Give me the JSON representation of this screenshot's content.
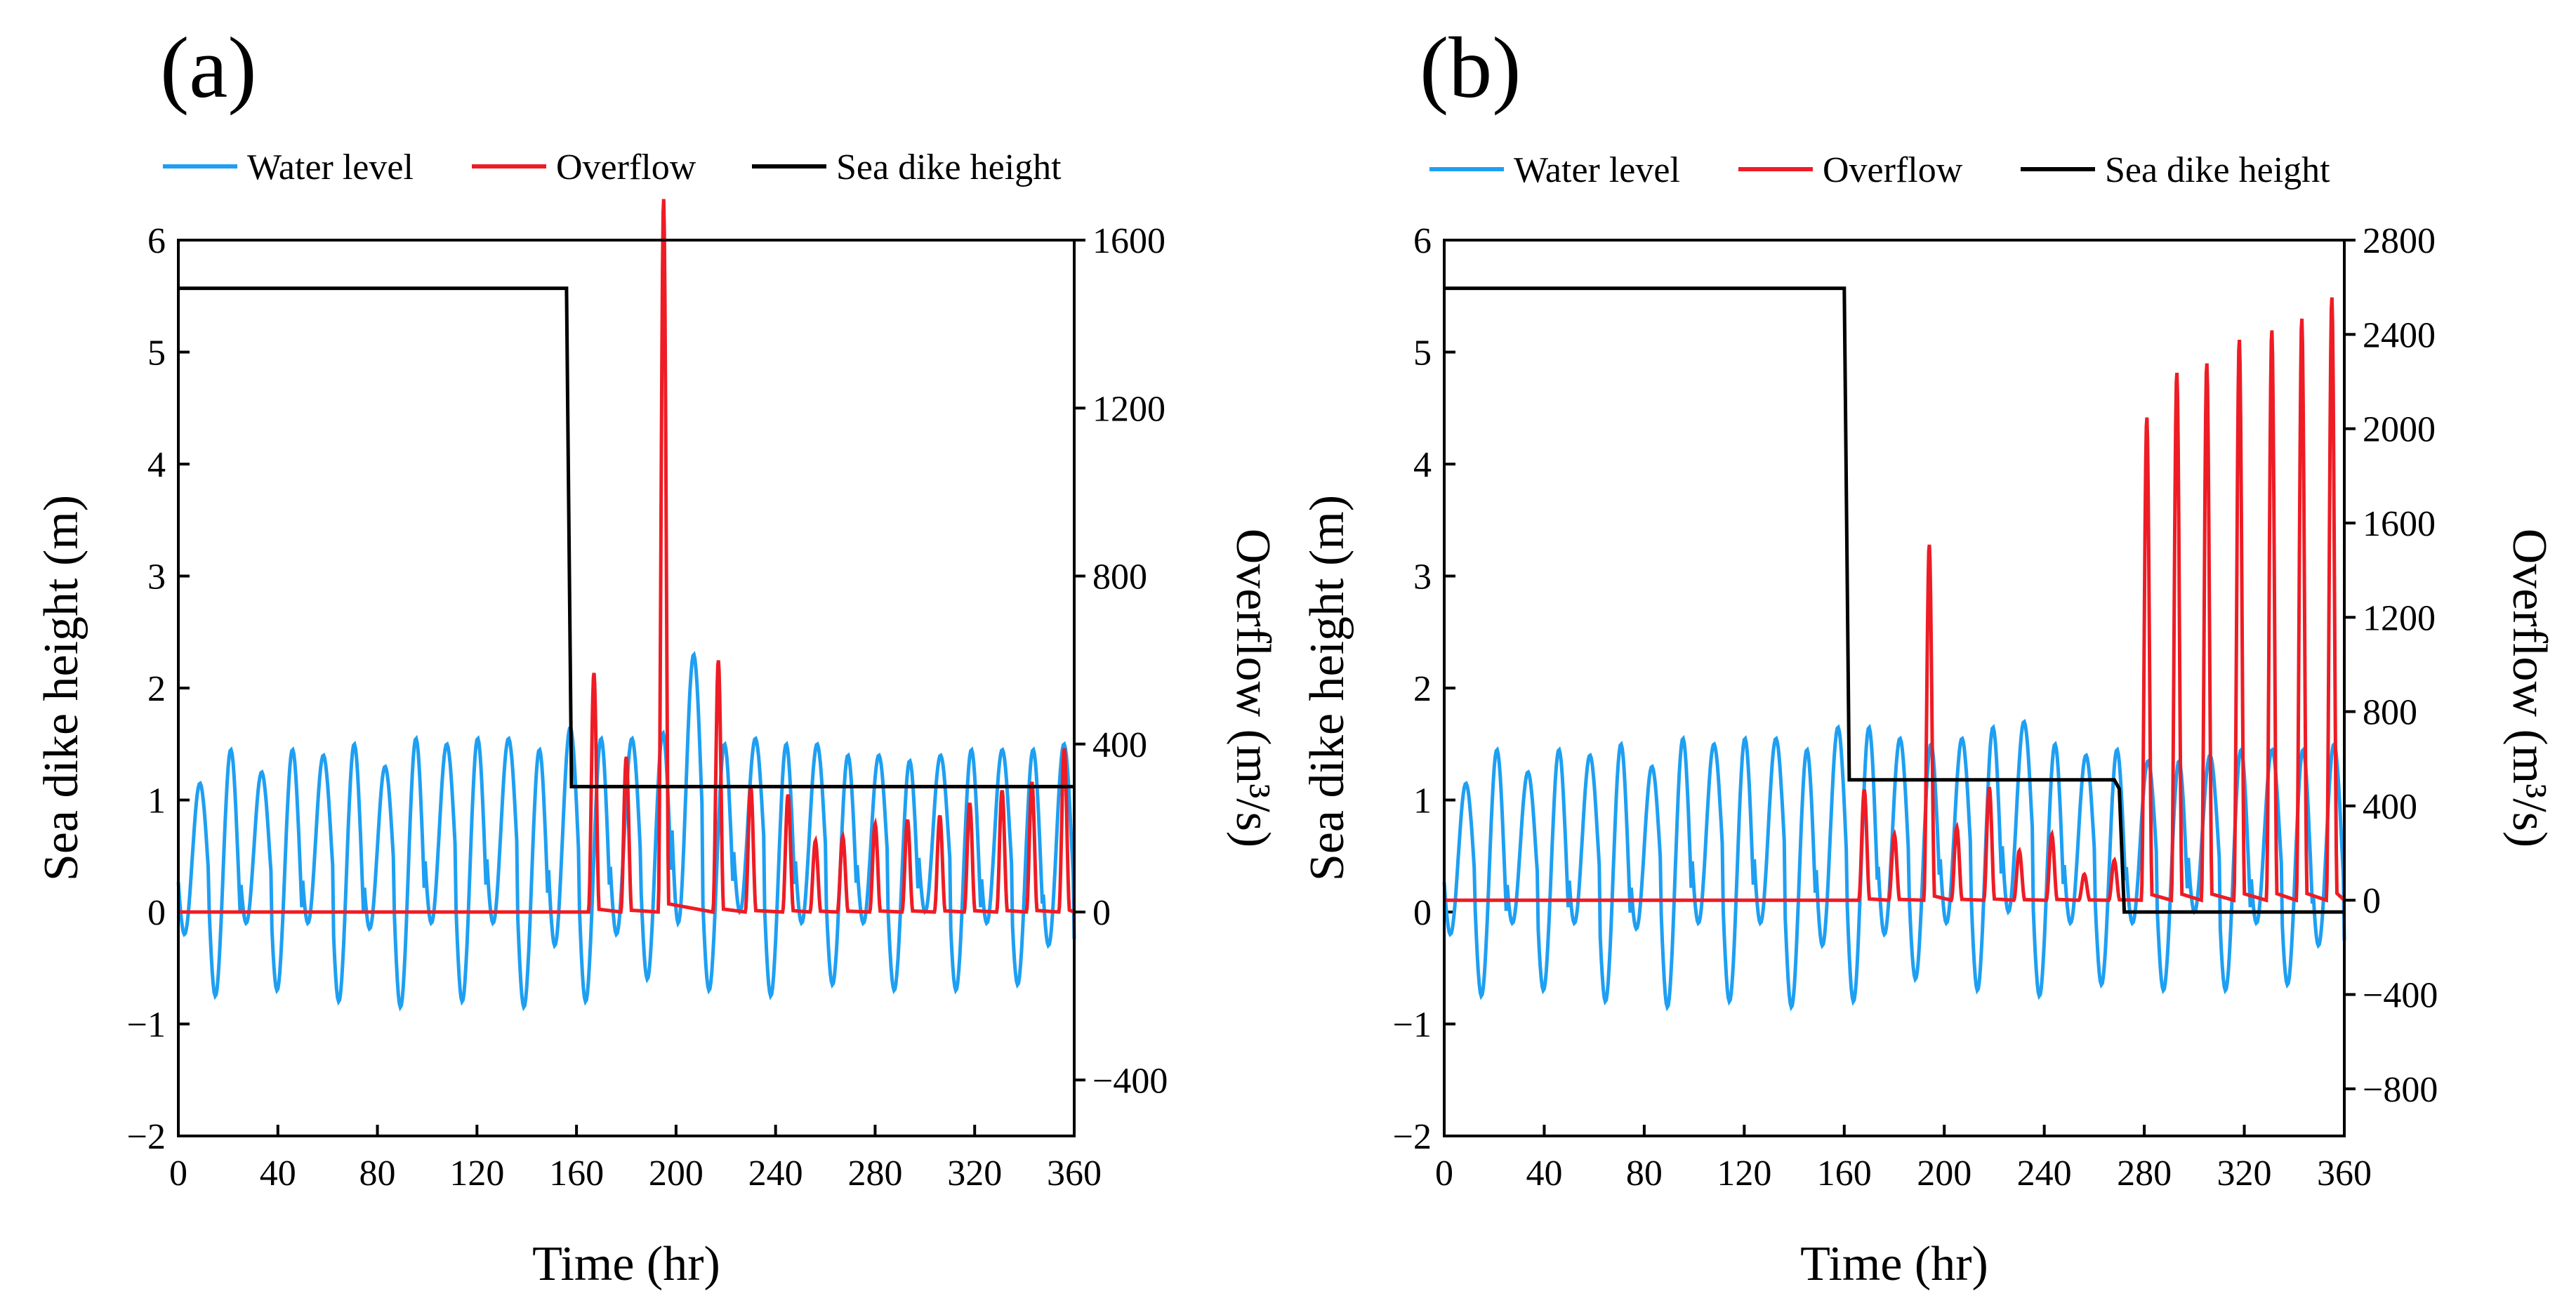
{
  "chart_data": [
    {
      "panel_label": "(a)",
      "type": "line",
      "xlabel": "Time (hr)",
      "ylabel": "Sea dike height (m)",
      "y2label": "Overflow (m³/s)",
      "xlim": [
        0,
        360
      ],
      "ylim": [
        -2,
        6
      ],
      "y2lim": [
        -533.3,
        1600
      ],
      "xticks": [
        "0",
        "40",
        "80",
        "120",
        "160",
        "200",
        "240",
        "280",
        "320",
        "360"
      ],
      "yticks": [
        "−2",
        "−1",
        "0",
        "1",
        "2",
        "3",
        "4",
        "5",
        "6"
      ],
      "y2ticks": [
        "−400",
        "0",
        "400",
        "800",
        "1200",
        "1600"
      ],
      "grid": false,
      "legend_placement": "top",
      "water_level": {
        "mean": 0.35,
        "period_hr": 12.4,
        "peaks": [
          1.15,
          1.45,
          1.25,
          1.45,
          1.4,
          1.5,
          1.3,
          1.55,
          1.5,
          1.55,
          1.55,
          1.45,
          1.65,
          1.55,
          1.55,
          1.6,
          2.3,
          1.5,
          1.55,
          1.5,
          1.5,
          1.4,
          1.4,
          1.35,
          1.4,
          1.45,
          1.45,
          1.45,
          1.5,
          1.55
        ],
        "troughs": [
          -0.2,
          -0.75,
          -0.1,
          -0.7,
          -0.1,
          -0.8,
          -0.15,
          -0.85,
          -0.1,
          -0.8,
          -0.1,
          -0.85,
          -0.3,
          -0.8,
          -0.2,
          -0.6,
          -0.1,
          -0.7,
          0.0,
          -0.75,
          -0.1,
          -0.65,
          -0.1,
          -0.7,
          0.0,
          -0.7,
          -0.1,
          -0.65,
          -0.3,
          -0.85
        ]
      },
      "overflow": [
        [
          167,
          570
        ],
        [
          180,
          370
        ],
        [
          195,
          1700
        ],
        [
          217,
          600
        ],
        [
          230,
          300
        ],
        [
          245,
          280
        ],
        [
          256,
          170
        ],
        [
          267,
          180
        ],
        [
          280,
          210
        ],
        [
          293,
          220
        ],
        [
          306,
          230
        ],
        [
          318,
          260
        ],
        [
          331,
          290
        ],
        [
          343,
          310
        ],
        [
          356,
          390
        ]
      ],
      "sea_dike_height": [
        [
          0,
          5.57
        ],
        [
          156,
          5.57
        ],
        [
          158,
          1.12
        ],
        [
          360,
          1.12
        ]
      ],
      "series": [
        {
          "name": "Water level",
          "color": "#1e9ff2"
        },
        {
          "name": "Overflow",
          "color": "#ee1c25"
        },
        {
          "name": "Sea dike height",
          "color": "#000000"
        }
      ]
    },
    {
      "panel_label": "(b)",
      "type": "line",
      "xlabel": "Time (hr)",
      "ylabel": "Sea dike height (m)",
      "y2label": "Overflow (m³/s)",
      "xlim": [
        0,
        360
      ],
      "ylim": [
        -2,
        6
      ],
      "y2lim": [
        -1000,
        2800
      ],
      "xticks": [
        "0",
        "40",
        "80",
        "120",
        "160",
        "200",
        "240",
        "280",
        "320",
        "360"
      ],
      "yticks": [
        "−2",
        "−1",
        "0",
        "1",
        "2",
        "3",
        "4",
        "5",
        "6"
      ],
      "y2ticks": [
        "−800",
        "−400",
        "0",
        "400",
        "800",
        "1200",
        "1600",
        "2000",
        "2400",
        "2800"
      ],
      "grid": false,
      "legend_placement": "top",
      "water_level": {
        "mean": 0.35,
        "period_hr": 12.4,
        "peaks": [
          1.15,
          1.45,
          1.25,
          1.45,
          1.4,
          1.5,
          1.3,
          1.55,
          1.5,
          1.55,
          1.55,
          1.45,
          1.65,
          1.65,
          1.55,
          1.5,
          1.55,
          1.65,
          1.7,
          1.5,
          1.4,
          1.45,
          1.35,
          1.35,
          1.4,
          1.45,
          1.45,
          1.45,
          1.5,
          1.5
        ],
        "troughs": [
          -0.2,
          -0.75,
          -0.1,
          -0.7,
          -0.1,
          -0.8,
          -0.15,
          -0.85,
          -0.1,
          -0.8,
          -0.1,
          -0.85,
          -0.3,
          -0.8,
          -0.2,
          -0.6,
          -0.1,
          -0.7,
          0.0,
          -0.75,
          -0.1,
          -0.65,
          -0.1,
          -0.7,
          0.0,
          -0.7,
          -0.1,
          -0.65,
          -0.3,
          -0.85
        ]
      },
      "overflow": [
        [
          168,
          470
        ],
        [
          180,
          280
        ],
        [
          194,
          1510
        ],
        [
          205,
          310
        ],
        [
          218,
          480
        ],
        [
          230,
          210
        ],
        [
          243,
          280
        ],
        [
          256,
          110
        ],
        [
          268,
          170
        ],
        [
          281,
          2050
        ],
        [
          293,
          2240
        ],
        [
          305,
          2280
        ],
        [
          318,
          2380
        ],
        [
          331,
          2420
        ],
        [
          343,
          2470
        ],
        [
          355,
          2560
        ]
      ],
      "sea_dike_height": [
        [
          0,
          5.57
        ],
        [
          160,
          5.57
        ],
        [
          162,
          1.18
        ],
        [
          268,
          1.18
        ],
        [
          270,
          1.1
        ],
        [
          272,
          0.0
        ],
        [
          360,
          0.0
        ]
      ],
      "series": [
        {
          "name": "Water level",
          "color": "#1e9ff2"
        },
        {
          "name": "Overflow",
          "color": "#ee1c25"
        },
        {
          "name": "Sea dike height",
          "color": "#000000"
        }
      ]
    }
  ]
}
